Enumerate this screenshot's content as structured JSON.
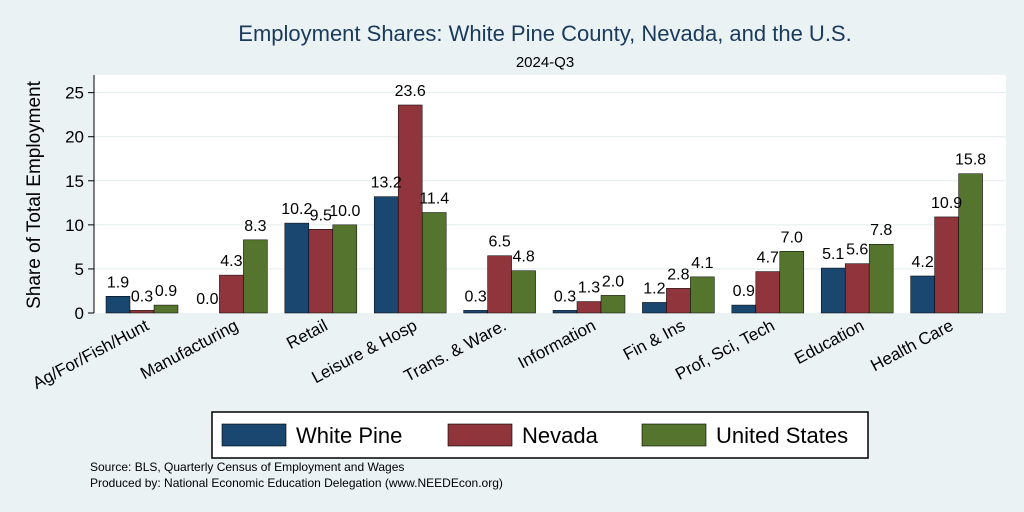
{
  "chart_data": {
    "type": "bar",
    "title": "Employment Shares: White Pine County, Nevada, and the U.S.",
    "subtitle": "2024-Q3",
    "ylabel": "Share of Total Employment",
    "xlabel": "",
    "ylim": [
      0,
      27
    ],
    "yticks": [
      0,
      5,
      10,
      15,
      20,
      25
    ],
    "grid": true,
    "legend_position": "bottom",
    "categories": [
      "Ag/For/Fish/Hunt",
      "Manufacturing",
      "Retail",
      "Leisure & Hosp",
      "Trans. & Ware.",
      "Information",
      "Fin & Ins",
      "Prof, Sci, Tech",
      "Education",
      "Health Care"
    ],
    "series": [
      {
        "name": "White Pine",
        "color": "#1a476f",
        "values": [
          1.9,
          0.0,
          10.2,
          13.2,
          0.3,
          0.3,
          1.2,
          0.9,
          5.1,
          4.2
        ],
        "labels": [
          "1.9",
          "0.0",
          "10.2",
          "13.2",
          "0.3",
          "0.3",
          "1.2",
          "0.9",
          "5.1",
          "4.2"
        ]
      },
      {
        "name": "Nevada",
        "color": "#90353b",
        "values": [
          0.3,
          4.3,
          9.5,
          23.6,
          6.5,
          1.3,
          2.8,
          4.7,
          5.6,
          10.9
        ],
        "labels": [
          "0.3",
          "4.3",
          "9.5",
          "23.6",
          "6.5",
          "1.3",
          "2.8",
          "4.7",
          "5.6",
          "10.9"
        ]
      },
      {
        "name": "United States",
        "color": "#55752f",
        "values": [
          0.9,
          8.3,
          10.0,
          11.4,
          4.8,
          2.0,
          4.1,
          7.0,
          7.8,
          15.8
        ],
        "labels": [
          "0.9",
          "8.3",
          "10.0",
          "11.4",
          "4.8",
          "2.0",
          "4.1",
          "7.0",
          "7.8",
          "15.8"
        ]
      }
    ]
  },
  "notes": {
    "source": "Source: BLS, Quarterly Census of Employment and Wages",
    "produced": "Produced by: National Economic Education Delegation (www.NEEDEcon.org)"
  }
}
